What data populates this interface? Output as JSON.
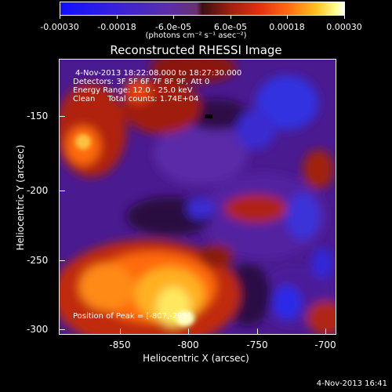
{
  "colorbar": {
    "labels": [
      "-0.00030",
      "-0.00018",
      "-6.0e-05",
      "6.0e-05",
      "0.00018",
      "0.00030"
    ],
    "units": "(photons cm⁻² s⁻¹ asec⁻²)"
  },
  "title": "Reconstructed RHESSI Image",
  "info": {
    "time": "4-Nov-2013 18:22:08.000 to 18:27:30.000",
    "detectors": "Detectors: 3F 5F 6F 7F 8F 9F, Att 0",
    "energy": "Energy Range: 12.0 - 25.0 keV",
    "clean": "Clean     Total counts: 1.74E+04",
    "peak": "Position of Peak = [-807,-295]"
  },
  "axes": {
    "xlabel": "Heliocentric X (arcsec)",
    "ylabel": "Heliocentric Y (arcsec)",
    "xticks": [
      "-850",
      "-800",
      "-750",
      "-700"
    ],
    "yticks": [
      "-150",
      "-200",
      "-250",
      "-300"
    ]
  },
  "timestamp": "4-Nov-2013 16:41",
  "colors": {
    "background": "#4a1a90",
    "low": "#2020ff",
    "high": "#ffff90"
  }
}
